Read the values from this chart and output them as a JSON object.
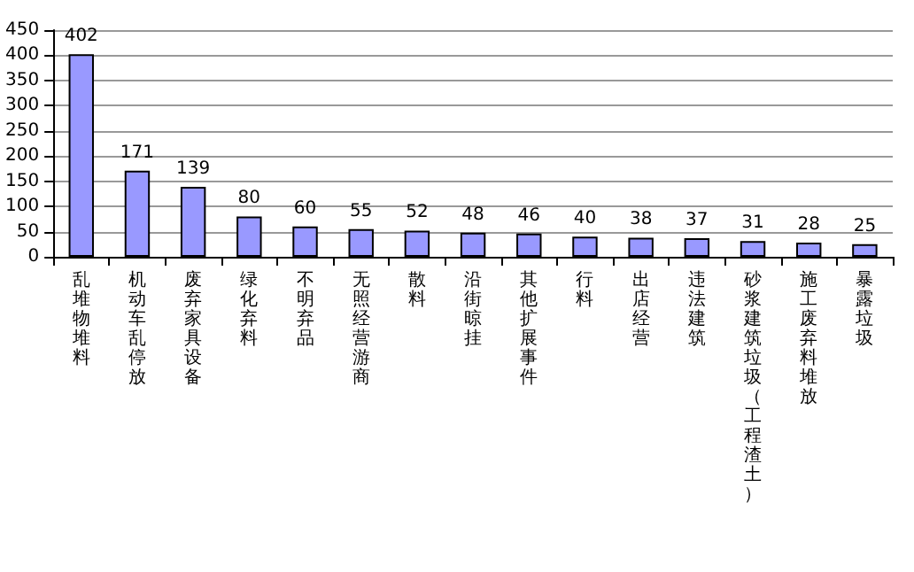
{
  "chart_data": {
    "type": "bar",
    "categories": [
      "乱堆物堆料",
      "机动车乱停放",
      "废弃家具设备",
      "绿化弃料",
      "不明弃品",
      "无照经营游商",
      "散料",
      "沿街晾挂",
      "其他扩展事件",
      "行料",
      "出店经营",
      "违法建筑",
      "砂浆建筑垃圾（工程渣土）",
      "施工废弃料堆放",
      "暴露垃圾"
    ],
    "values": [
      402,
      171,
      139,
      80,
      60,
      55,
      52,
      48,
      46,
      40,
      38,
      37,
      31,
      28,
      25
    ],
    "color": "#9999ff",
    "data_labels": true,
    "ylim": [
      0,
      450
    ],
    "yticks": [
      0,
      50,
      100,
      150,
      200,
      250,
      300,
      350,
      400,
      450
    ],
    "grid": "y"
  }
}
